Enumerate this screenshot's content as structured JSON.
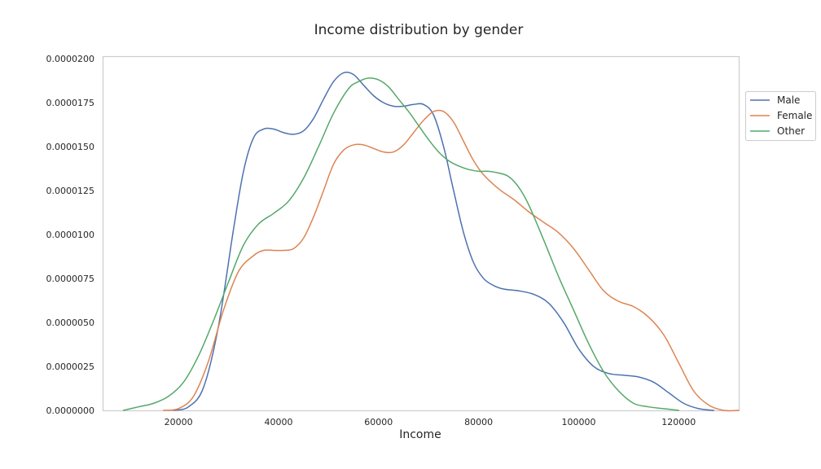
{
  "chart_data": {
    "type": "line",
    "title": "Income distribution by gender",
    "xlabel": "Income",
    "ylabel": "",
    "xlim": [
      5000,
      132000
    ],
    "ylim": [
      0,
      2.01e-05
    ],
    "grid": false,
    "legend_position": "right",
    "x_ticks": [
      20000,
      40000,
      60000,
      80000,
      100000,
      120000
    ],
    "x_tick_labels": [
      "20000",
      "40000",
      "60000",
      "80000",
      "100000",
      "120000"
    ],
    "y_ticks": [
      0,
      2.5e-06,
      5e-06,
      7.5e-06,
      1e-05,
      1.25e-05,
      1.5e-05,
      1.75e-05,
      2e-05
    ],
    "y_tick_labels": [
      "0.0000000",
      "0.0000025",
      "0.0000050",
      "0.0000075",
      "0.0000100",
      "0.0000125",
      "0.0000150",
      "0.0000175",
      "0.0000200"
    ],
    "series": [
      {
        "name": "Male",
        "color": "#4c72b0",
        "x": [
          19000,
          22000,
          25000,
          28000,
          31000,
          33000,
          35000,
          37000,
          39000,
          41000,
          43000,
          45000,
          47000,
          49000,
          51000,
          53000,
          55000,
          57000,
          59000,
          61000,
          63000,
          65000,
          67000,
          69000,
          71000,
          73000,
          75000,
          77000,
          79000,
          81000,
          83000,
          85000,
          88000,
          91000,
          94000,
          97000,
          100000,
          103000,
          106000,
          109000,
          112000,
          115000,
          118000,
          121000,
          124000,
          127000
        ],
        "y": [
          0.0,
          2e-07,
          1.3e-06,
          4.8e-06,
          1.03e-05,
          1.36e-05,
          1.55e-05,
          1.6e-05,
          1.6e-05,
          1.58e-05,
          1.57e-05,
          1.59e-05,
          1.66e-05,
          1.77e-05,
          1.87e-05,
          1.92e-05,
          1.91e-05,
          1.85e-05,
          1.79e-05,
          1.75e-05,
          1.73e-05,
          1.73e-05,
          1.74e-05,
          1.74e-05,
          1.68e-05,
          1.5e-05,
          1.25e-05,
          1.01e-05,
          8.4e-06,
          7.5e-06,
          7.1e-06,
          6.9e-06,
          6.8e-06,
          6.6e-06,
          6.1e-06,
          5e-06,
          3.5e-06,
          2.5e-06,
          2.1e-06,
          2e-06,
          1.9e-06,
          1.6e-06,
          1e-06,
          4e-07,
          1e-07,
          0.0
        ]
      },
      {
        "name": "Female",
        "color": "#dd8452",
        "x": [
          17000,
          20000,
          23000,
          26000,
          29000,
          32000,
          35000,
          37000,
          39000,
          41000,
          43000,
          45000,
          47000,
          49000,
          51000,
          53000,
          55000,
          57000,
          59000,
          61000,
          63000,
          65000,
          67000,
          69000,
          71000,
          73000,
          75000,
          77000,
          79000,
          81000,
          84000,
          87000,
          90000,
          93000,
          96000,
          99000,
          102000,
          105000,
          108000,
          111000,
          114000,
          117000,
          120000,
          123000,
          126000,
          129000,
          132000
        ],
        "y": [
          0.0,
          1e-07,
          8e-07,
          2.8e-06,
          5.7e-06,
          7.9e-06,
          8.8e-06,
          9.1e-06,
          9.1e-06,
          9.1e-06,
          9.2e-06,
          9.8e-06,
          1.1e-05,
          1.25e-05,
          1.4e-05,
          1.48e-05,
          1.51e-05,
          1.51e-05,
          1.49e-05,
          1.47e-05,
          1.47e-05,
          1.51e-05,
          1.58e-05,
          1.65e-05,
          1.7e-05,
          1.7e-05,
          1.64e-05,
          1.53e-05,
          1.42e-05,
          1.34e-05,
          1.26e-05,
          1.2e-05,
          1.13e-05,
          1.07e-05,
          1.01e-05,
          9.2e-06,
          8e-06,
          6.8e-06,
          6.2e-06,
          5.9e-06,
          5.3e-06,
          4.3e-06,
          2.7e-06,
          1.1e-06,
          3e-07,
          0.0,
          0.0
        ]
      },
      {
        "name": "Other",
        "color": "#55a868",
        "x": [
          9000,
          12000,
          15000,
          18000,
          21000,
          24000,
          27000,
          30000,
          33000,
          36000,
          39000,
          42000,
          45000,
          48000,
          51000,
          54000,
          56000,
          58000,
          60000,
          62000,
          64000,
          66000,
          68000,
          70000,
          72000,
          74000,
          76000,
          78000,
          80000,
          82000,
          84000,
          86000,
          88000,
          90000,
          93000,
          96000,
          99000,
          102000,
          105000,
          108000,
          111000,
          114000,
          117000,
          120000
        ],
        "y": [
          0.0,
          2e-07,
          4e-07,
          8e-07,
          1.6e-06,
          3.1e-06,
          5.1e-06,
          7.3e-06,
          9.4e-06,
          1.06e-05,
          1.12e-05,
          1.19e-05,
          1.32e-05,
          1.5e-05,
          1.69e-05,
          1.83e-05,
          1.87e-05,
          1.89e-05,
          1.88e-05,
          1.84e-05,
          1.77e-05,
          1.7e-05,
          1.62e-05,
          1.54e-05,
          1.47e-05,
          1.42e-05,
          1.39e-05,
          1.37e-05,
          1.36e-05,
          1.36e-05,
          1.35e-05,
          1.33e-05,
          1.27e-05,
          1.17e-05,
          9.7e-06,
          7.6e-06,
          5.7e-06,
          3.8e-06,
          2.2e-06,
          1.1e-06,
          4e-07,
          2e-07,
          1e-07,
          0.0
        ]
      }
    ]
  }
}
